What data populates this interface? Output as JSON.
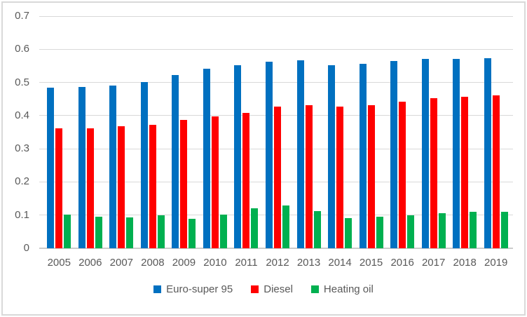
{
  "chart_data": {
    "type": "bar",
    "title": "",
    "categories": [
      "2005",
      "2006",
      "2007",
      "2008",
      "2009",
      "2010",
      "2011",
      "2012",
      "2013",
      "2014",
      "2015",
      "2016",
      "2017",
      "2018",
      "2019"
    ],
    "series": [
      {
        "name": "Euro-super 95",
        "color": "#0070C0",
        "values": [
          0.485,
          0.487,
          0.49,
          0.501,
          0.522,
          0.542,
          0.551,
          0.563,
          0.566,
          0.551,
          0.556,
          0.565,
          0.572,
          0.572,
          0.574
        ]
      },
      {
        "name": "Diesel",
        "color": "#FF0000",
        "values": [
          0.362,
          0.362,
          0.368,
          0.373,
          0.386,
          0.397,
          0.408,
          0.428,
          0.432,
          0.427,
          0.431,
          0.443,
          0.452,
          0.456,
          0.46
        ]
      },
      {
        "name": "Heating oil",
        "color": "#00B050",
        "values": [
          0.102,
          0.096,
          0.093,
          0.1,
          0.089,
          0.101,
          0.12,
          0.129,
          0.113,
          0.091,
          0.096,
          0.1,
          0.106,
          0.11,
          0.11
        ]
      }
    ],
    "y_axis": {
      "min": 0,
      "max": 0.7,
      "step": 0.1,
      "tick_labels": [
        "0",
        "0.1",
        "0.2",
        "0.3",
        "0.4",
        "0.5",
        "0.6",
        "0.7"
      ]
    },
    "x_axis": {
      "label": ""
    },
    "grid": true,
    "legend_position": "bottom"
  },
  "colors": {
    "background": "#FFFFFF",
    "border": "#D9D9D9",
    "gridline": "#D9D9D9",
    "axis_line": "#CCCCCC",
    "tick_text": "#595959",
    "legend_text": "#595959"
  }
}
